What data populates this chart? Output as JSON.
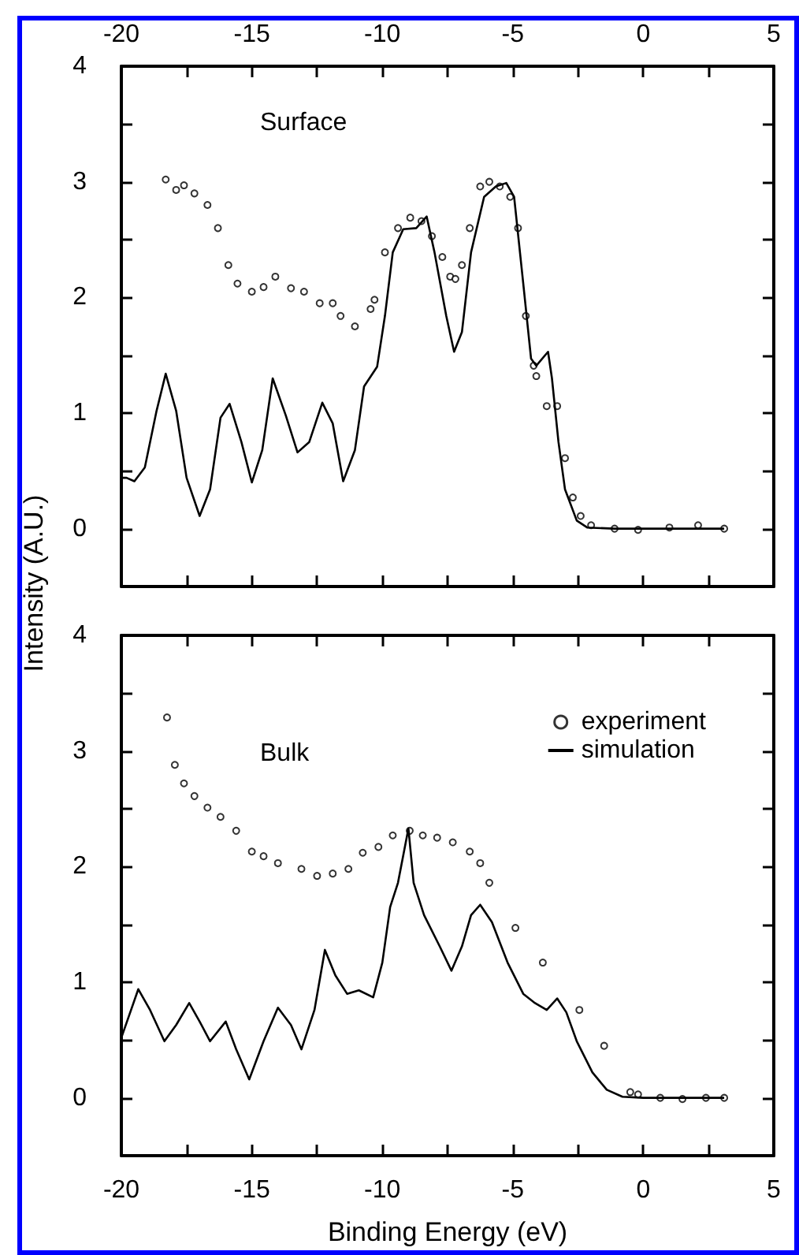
{
  "chart_data": [
    {
      "type": "line",
      "annotations": [
        "Surface"
      ],
      "ylabel": "Intensity (A.U.)",
      "xlim": [
        -20,
        5
      ],
      "xticks": [
        -20,
        {
          "value": -17.5,
          "label": null
        },
        -15,
        {
          "value": -12.5,
          "label": null
        },
        -10,
        {
          "value": -7.5,
          "label": null
        },
        -5,
        {
          "value": -2.5,
          "label": null
        },
        0,
        {
          "value": 2.5,
          "label": null
        },
        5
      ],
      "x2lim": [
        -20,
        5
      ],
      "x2ticks": [
        -20,
        {
          "value": -17.5,
          "label": null
        },
        -15,
        {
          "value": -12.5,
          "label": null
        },
        -10,
        {
          "value": -7.5,
          "label": null
        },
        -5,
        {
          "value": -2.5,
          "label": null
        },
        0,
        {
          "value": 2.5,
          "label": null
        },
        5
      ],
      "ylim": [
        -0.5,
        4
      ],
      "yticks": [
        0,
        {
          "value": 0.5,
          "label": null
        },
        1,
        {
          "value": 1.5,
          "label": null
        },
        2,
        {
          "value": 2.5,
          "label": null
        },
        3,
        {
          "value": 3.5,
          "label": null
        },
        4
      ],
      "tick_labels": "y",
      "grid": false,
      "legend": false,
      "series": [
        {
          "type": "scatter",
          "marker": "circle",
          "color": "#000000",
          "x": [
            -18.3,
            -17.9,
            -17.6,
            -17.2,
            -16.7,
            -16.3,
            -15.9,
            -15.55,
            -15.0,
            -14.55,
            -14.1,
            -13.5,
            -13.0,
            -12.4,
            -11.9,
            -11.6,
            -11.05,
            -10.45,
            -10.3,
            -9.9,
            -9.4,
            -8.93,
            -8.5,
            -8.1,
            -7.7,
            -7.4,
            -7.2,
            -6.95,
            -6.65,
            -6.25,
            -5.9,
            -5.5,
            -5.1,
            -4.8,
            -4.5,
            -4.2,
            -4.1,
            -3.7,
            -3.3,
            -3.0,
            -2.7,
            -2.4,
            -2.0,
            -1.1,
            -0.2,
            1.0,
            2.1,
            3.1
          ],
          "values": [
            3.02,
            2.93,
            2.97,
            2.9,
            2.8,
            2.6,
            2.28,
            2.12,
            2.05,
            2.09,
            2.18,
            2.08,
            2.05,
            1.95,
            1.95,
            1.84,
            1.75,
            1.9,
            1.98,
            2.39,
            2.6,
            2.69,
            2.66,
            2.53,
            2.35,
            2.18,
            2.16,
            2.28,
            2.6,
            2.96,
            3.0,
            2.96,
            2.87,
            2.6,
            1.84,
            1.41,
            1.32,
            1.06,
            1.06,
            0.61,
            0.27,
            0.11,
            0.03,
            0,
            -0.01,
            0.01,
            0.03,
            0
          ]
        },
        {
          "marker": "none",
          "line_style": "solid",
          "color": "#000000",
          "x": [
            -20,
            -19.8,
            -19.5,
            -19.1,
            -18.65,
            -18.3,
            -17.9,
            -17.5,
            -17.0,
            -16.6,
            -16.2,
            -15.85,
            -15.4,
            -15.0,
            -14.6,
            -14.2,
            -13.7,
            -13.25,
            -12.8,
            -12.3,
            -11.9,
            -11.5,
            -11.05,
            -10.7,
            -10.2,
            -9.9,
            -9.6,
            -9.2,
            -8.7,
            -8.3,
            -8.0,
            -7.55,
            -7.25,
            -6.95,
            -6.6,
            -6.1,
            -5.65,
            -5.25,
            -4.95,
            -4.6,
            -4.3,
            -4.1,
            -3.65,
            -3.5,
            -3.25,
            -3.0,
            -2.55,
            -2.15,
            -1.1,
            3.1
          ],
          "values": [
            0.44,
            0.44,
            0.41,
            0.53,
            1.02,
            1.34,
            1.02,
            0.44,
            0.11,
            0.34,
            0.96,
            1.08,
            0.75,
            0.4,
            0.68,
            1.3,
            0.98,
            0.66,
            0.75,
            1.09,
            0.91,
            0.41,
            0.68,
            1.23,
            1.4,
            1.84,
            2.39,
            2.59,
            2.6,
            2.7,
            2.39,
            1.84,
            1.53,
            1.7,
            2.39,
            2.87,
            2.96,
            2.99,
            2.87,
            2.12,
            1.47,
            1.41,
            1.53,
            1.3,
            0.75,
            0.34,
            0.07,
            0.01,
            0,
            0
          ]
        }
      ]
    },
    {
      "type": "line",
      "annotations": [
        "Bulk"
      ],
      "xlabel": "Binding Energy (eV)",
      "xlim": [
        -20,
        5
      ],
      "xticks": [
        -20,
        {
          "value": -17.5,
          "label": null
        },
        -15,
        {
          "value": -12.5,
          "label": null
        },
        -10,
        {
          "value": -7.5,
          "label": null
        },
        -5,
        {
          "value": -2.5,
          "label": null
        },
        0,
        {
          "value": 2.5,
          "label": null
        },
        5
      ],
      "ylim": [
        -0.5,
        4
      ],
      "yticks": [
        0,
        {
          "value": 0.5,
          "label": null
        },
        1,
        {
          "value": 1.5,
          "label": null
        },
        2,
        {
          "value": 2.5,
          "label": null
        },
        3,
        {
          "value": 3.5,
          "label": null
        },
        4
      ],
      "grid": false,
      "legend": "top right",
      "series": [
        {
          "name": "experiment",
          "type": "scatter",
          "marker": "circle",
          "color": "#000000",
          "x": [
            -18.25,
            -17.95,
            -17.6,
            -17.2,
            -16.7,
            -16.2,
            -15.6,
            -15.0,
            -14.55,
            -14.0,
            -13.1,
            -12.5,
            -11.9,
            -11.3,
            -10.75,
            -10.15,
            -9.6,
            -8.95,
            -8.45,
            -7.9,
            -7.3,
            -6.65,
            -6.25,
            -5.9,
            -4.9,
            -3.85,
            -2.45,
            -1.5,
            -0.5,
            -0.2,
            0.65,
            1.5,
            2.4,
            3.1
          ],
          "values": [
            3.29,
            2.88,
            2.72,
            2.61,
            2.51,
            2.43,
            2.31,
            2.13,
            2.09,
            2.03,
            1.98,
            1.92,
            1.94,
            1.98,
            2.12,
            2.17,
            2.27,
            2.31,
            2.27,
            2.25,
            2.21,
            2.13,
            2.03,
            1.86,
            1.47,
            1.17,
            0.76,
            0.45,
            0.05,
            0.03,
            0,
            -0.01,
            0,
            0
          ]
        },
        {
          "name": "simulation",
          "marker": "none",
          "line_style": "solid",
          "color": "#000000",
          "x": [
            -20,
            -19.35,
            -18.9,
            -18.35,
            -17.9,
            -17.4,
            -17.0,
            -16.6,
            -16.0,
            -15.6,
            -15.1,
            -14.55,
            -14.0,
            -13.5,
            -13.1,
            -12.6,
            -12.2,
            -11.8,
            -11.35,
            -10.9,
            -10.35,
            -10.0,
            -9.7,
            -9.4,
            -9.0,
            -8.8,
            -8.4,
            -7.8,
            -7.35,
            -6.95,
            -6.6,
            -6.25,
            -5.8,
            -5.2,
            -4.6,
            -4.15,
            -3.7,
            -3.3,
            -2.95,
            -2.55,
            -1.95,
            -1.4,
            -0.8,
            0,
            3.1
          ],
          "values": [
            0.52,
            0.94,
            0.76,
            0.49,
            0.63,
            0.82,
            0.66,
            0.49,
            0.66,
            0.42,
            0.16,
            0.49,
            0.78,
            0.63,
            0.42,
            0.76,
            1.28,
            1.06,
            0.9,
            0.93,
            0.87,
            1.17,
            1.65,
            1.86,
            2.33,
            1.86,
            1.58,
            1.31,
            1.1,
            1.31,
            1.58,
            1.67,
            1.52,
            1.17,
            0.9,
            0.82,
            0.76,
            0.86,
            0.74,
            0.49,
            0.22,
            0.07,
            0.01,
            0,
            0
          ]
        }
      ]
    }
  ]
}
